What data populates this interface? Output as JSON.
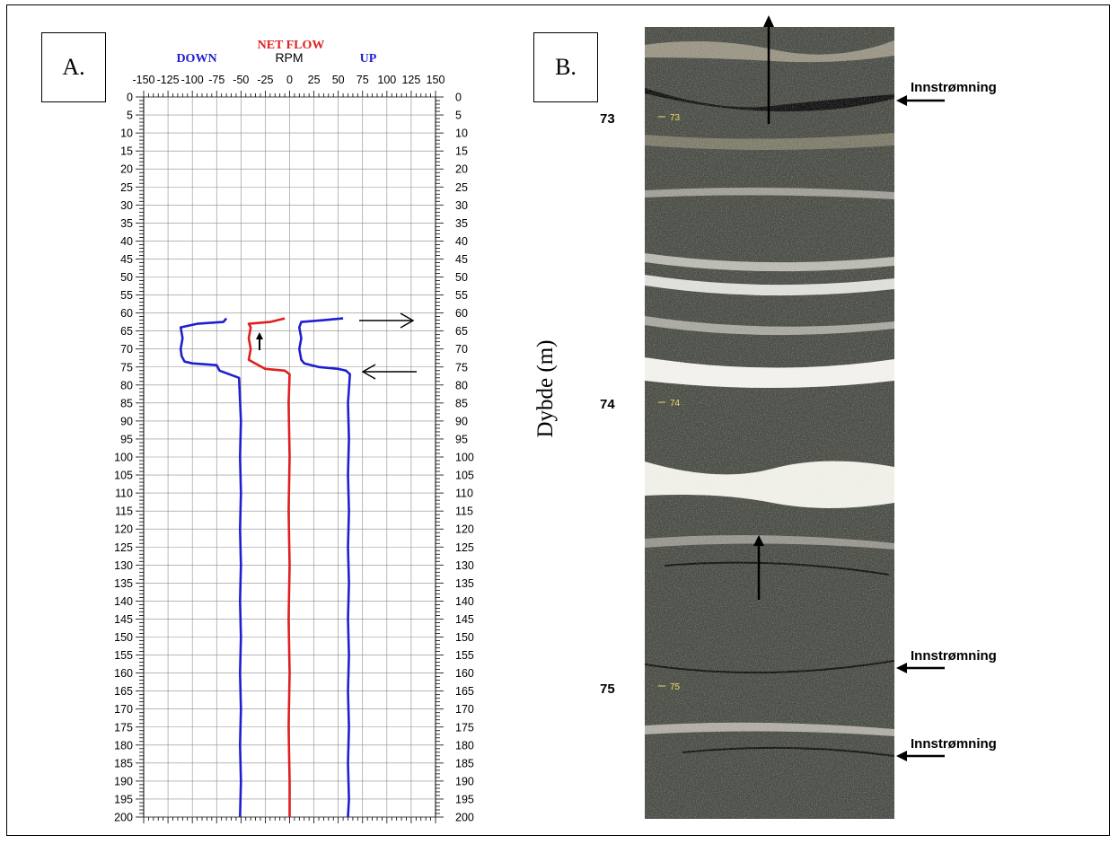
{
  "panels": {
    "a_label": "A.",
    "b_label": "B."
  },
  "log_header": {
    "net_flow": "NET FLOW",
    "rpm": "RPM",
    "down": "DOWN",
    "up": "UP"
  },
  "colors": {
    "down_up": "#1f1fd0",
    "net_flow": "#e02020",
    "axis": "#000000"
  },
  "chart_data": {
    "type": "line",
    "orientation": "vertical-depth",
    "x_axis": {
      "label": "RPM",
      "range": [
        -150,
        150
      ],
      "ticks": [
        -150,
        -125,
        -100,
        -75,
        -50,
        -25,
        0,
        25,
        50,
        75,
        100,
        125,
        150
      ]
    },
    "y_axis": {
      "range": [
        0,
        200
      ],
      "inverted": true,
      "ticks": [
        0,
        5,
        10,
        15,
        20,
        25,
        30,
        35,
        40,
        45,
        50,
        55,
        60,
        65,
        70,
        75,
        80,
        85,
        90,
        95,
        100,
        105,
        110,
        115,
        120,
        125,
        130,
        135,
        140,
        145,
        150,
        155,
        160,
        165,
        170,
        175,
        180,
        185,
        190,
        195,
        200
      ]
    },
    "grid": true,
    "series": [
      {
        "name": "DOWN",
        "color": "#1f1fd0",
        "points": [
          [
            -65,
            61.5
          ],
          [
            -68,
            62.5
          ],
          [
            -95,
            63
          ],
          [
            -112,
            64
          ],
          [
            -110,
            67
          ],
          [
            -112,
            70
          ],
          [
            -111,
            72
          ],
          [
            -108,
            73.5
          ],
          [
            -100,
            74
          ],
          [
            -75,
            74.5
          ],
          [
            -72,
            76
          ],
          [
            -62,
            77
          ],
          [
            -52,
            78
          ],
          [
            -50,
            90
          ],
          [
            -51,
            100
          ],
          [
            -50,
            110
          ],
          [
            -51,
            120
          ],
          [
            -50,
            130
          ],
          [
            -51,
            140
          ],
          [
            -50,
            150
          ],
          [
            -51,
            160
          ],
          [
            -50,
            170
          ],
          [
            -51,
            180
          ],
          [
            -50,
            190
          ],
          [
            -51,
            200
          ]
        ]
      },
      {
        "name": "NET FLOW",
        "color": "#e02020",
        "points": [
          [
            -5,
            61.5
          ],
          [
            -20,
            62.5
          ],
          [
            -42,
            63
          ],
          [
            -40,
            64
          ],
          [
            -42,
            67
          ],
          [
            -40,
            70
          ],
          [
            -42,
            73
          ],
          [
            -32,
            74.5
          ],
          [
            -25,
            75.5
          ],
          [
            -5,
            76
          ],
          [
            0,
            77
          ],
          [
            -1,
            85
          ],
          [
            0,
            100
          ],
          [
            -1,
            115
          ],
          [
            0,
            130
          ],
          [
            -1,
            145
          ],
          [
            0,
            160
          ],
          [
            -1,
            175
          ],
          [
            0,
            190
          ],
          [
            0,
            200
          ]
        ]
      },
      {
        "name": "UP",
        "color": "#1f1fd0",
        "points": [
          [
            55,
            61.5
          ],
          [
            35,
            62
          ],
          [
            12,
            62.5
          ],
          [
            10,
            64
          ],
          [
            12,
            67
          ],
          [
            10,
            70
          ],
          [
            12,
            73
          ],
          [
            15,
            74
          ],
          [
            30,
            75
          ],
          [
            50,
            75.5
          ],
          [
            58,
            76
          ],
          [
            62,
            77
          ],
          [
            60,
            85
          ],
          [
            61,
            95
          ],
          [
            60,
            105
          ],
          [
            61,
            115
          ],
          [
            60,
            125
          ],
          [
            61,
            135
          ],
          [
            60,
            145
          ],
          [
            61,
            155
          ],
          [
            60,
            165
          ],
          [
            61,
            175
          ],
          [
            60,
            185
          ],
          [
            61,
            195
          ],
          [
            60,
            200
          ]
        ]
      }
    ]
  },
  "core": {
    "depth_axis_label": "Dybde (m)",
    "depth_labels": [
      "73",
      "74",
      "75"
    ],
    "core_marks": [
      "73",
      "74",
      "75"
    ],
    "inflow_label": "Innstrømning",
    "inflow_labels": [
      "Innstrømning",
      "Innstrømning",
      "Innstrømning"
    ]
  }
}
